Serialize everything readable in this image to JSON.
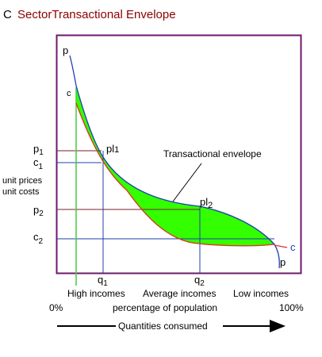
{
  "title": {
    "letter": "C",
    "text": "SectorTransactional Envelope",
    "letter_color": "#000000",
    "text_color": "#8b0000"
  },
  "frame_color": "#6b1a6b",
  "curves": {
    "p_label_top": "p",
    "p_label_bottom": "p",
    "c_label_top": "c",
    "c_label_right": "c",
    "p_curve_color": "#1f3fb0",
    "c_curve_color": "#e03020",
    "envelope_fill": "#33ff00",
    "vertical_green_color": "#44cc44"
  },
  "points": {
    "pl1": {
      "base": "pl",
      "sub": "1"
    },
    "pl2": {
      "base": "pl",
      "sub": "2"
    }
  },
  "envelope_label": "Transactional envelope",
  "y_axis": {
    "p1": {
      "base": "p",
      "sub": "1"
    },
    "c1": {
      "base": "c",
      "sub": "1"
    },
    "p2": {
      "base": "p",
      "sub": "2"
    },
    "c2": {
      "base": "c",
      "sub": "2"
    },
    "label_line1": "unit prices",
    "label_line2": "unit costs"
  },
  "x_axis": {
    "q1": {
      "base": "q",
      "sub": "1"
    },
    "q2": {
      "base": "q",
      "sub": "2"
    },
    "high_incomes": "High incomes",
    "average_incomes": "Average incomes",
    "low_incomes": "Low incomes",
    "zero": "0%",
    "hundred": "100%",
    "population_label": "percentage of population",
    "quantities_label": "Quantities consumed"
  },
  "guide_colors": {
    "price_line": "#7a1f2a",
    "cost_line": "#1f3fb0"
  }
}
